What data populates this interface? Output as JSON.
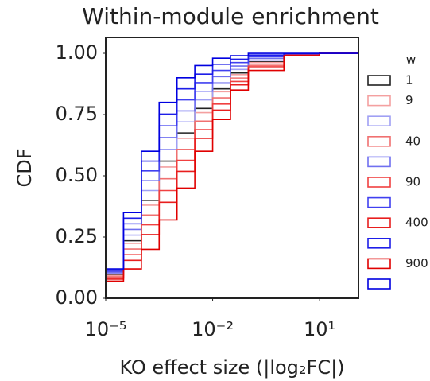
{
  "chart_data": {
    "type": "step-line",
    "title": "Within-module enrichment",
    "x_label": "KO effect size (|log₂FC|)",
    "y_label": "CDF",
    "x_scale": "log",
    "legend_title": "w",
    "legend_position": "right outside",
    "x": [
      1e-05,
      3.16e-05,
      0.0001,
      0.000316,
      0.001,
      0.00316,
      0.01,
      0.0316,
      0.1,
      1,
      10,
      100
    ],
    "series": [
      {
        "name": "1",
        "color": "#222222",
        "values": [
          0.095,
          0.235,
          0.4,
          0.56,
          0.675,
          0.775,
          0.855,
          0.92,
          0.965,
          0.995,
          1,
          1
        ]
      },
      {
        "name": "9",
        "color": "#f4a0a0",
        "values": [
          0.093,
          0.224,
          0.38,
          0.536,
          0.653,
          0.758,
          0.843,
          0.913,
          0.962,
          0.995,
          1,
          1
        ]
      },
      {
        "name": null,
        "color": "#a0a0f4",
        "values": [
          0.1,
          0.258,
          0.44,
          0.608,
          0.72,
          0.81,
          0.88,
          0.934,
          0.972,
          0.996,
          1,
          1
        ]
      },
      {
        "name": "40",
        "color": "#f07070",
        "values": [
          0.088,
          0.201,
          0.34,
          0.488,
          0.608,
          0.723,
          0.818,
          0.899,
          0.955,
          0.994,
          1,
          1
        ]
      },
      {
        "name": null,
        "color": "#7070f0",
        "values": [
          0.105,
          0.281,
          0.48,
          0.656,
          0.765,
          0.845,
          0.905,
          0.948,
          0.979,
          0.997,
          1,
          1
        ]
      },
      {
        "name": "90",
        "color": "#f04040",
        "values": [
          0.083,
          0.178,
          0.3,
          0.44,
          0.563,
          0.688,
          0.793,
          0.885,
          0.948,
          0.993,
          1,
          1
        ]
      },
      {
        "name": null,
        "color": "#4040f0",
        "values": [
          0.11,
          0.304,
          0.52,
          0.704,
          0.81,
          0.88,
          0.93,
          0.962,
          0.986,
          0.998,
          1,
          1
        ]
      },
      {
        "name": "400",
        "color": "#e81e1e",
        "values": [
          0.078,
          0.155,
          0.26,
          0.392,
          0.518,
          0.653,
          0.768,
          0.871,
          0.941,
          0.992,
          1,
          1
        ]
      },
      {
        "name": null,
        "color": "#1e1ee8",
        "values": [
          0.115,
          0.327,
          0.56,
          0.752,
          0.855,
          0.915,
          0.955,
          0.976,
          0.993,
          0.999,
          1,
          1
        ]
      },
      {
        "name": "900",
        "color": "#e00000",
        "values": [
          0.07,
          0.12,
          0.2,
          0.32,
          0.45,
          0.6,
          0.73,
          0.85,
          0.93,
          0.99,
          1,
          1
        ]
      },
      {
        "name": null,
        "color": "#0000e0",
        "values": [
          0.12,
          0.35,
          0.6,
          0.8,
          0.9,
          0.95,
          0.98,
          0.99,
          1,
          1,
          1,
          1
        ]
      }
    ],
    "xlim": [
      1e-05,
      123
    ],
    "ylim": [
      0,
      1.065
    ],
    "xticks": [
      {
        "value": 1e-05,
        "label": "10⁻⁵"
      },
      {
        "value": 0.01,
        "label": "10⁻²"
      },
      {
        "value": 10,
        "label": "10¹"
      }
    ],
    "yticks": [
      {
        "value": 0,
        "label": "0.00"
      },
      {
        "value": 0.25,
        "label": "0.25"
      },
      {
        "value": 0.5,
        "label": "0.50"
      },
      {
        "value": 0.75,
        "label": "0.75"
      },
      {
        "value": 1,
        "label": "1.00"
      }
    ],
    "grid": false
  }
}
